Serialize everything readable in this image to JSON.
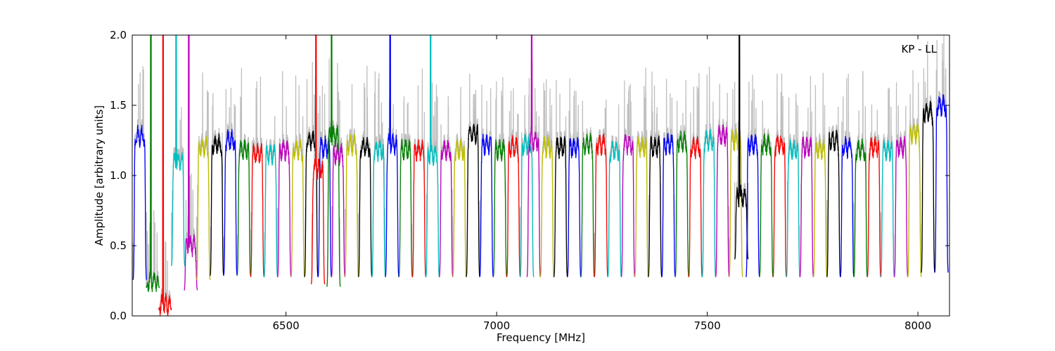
{
  "chart_data": {
    "type": "line",
    "title": "",
    "annotation": "KP - LL",
    "xlabel": "Frequency [MHz]",
    "ylabel": "Amplitude [arbitrary units]",
    "xlim": [
      6135,
      8075
    ],
    "ylim": [
      0.0,
      2.0
    ],
    "x_ticks": [
      6500,
      7000,
      7500,
      8000
    ],
    "x_tick_labels": [
      "6500",
      "7000",
      "7500",
      "8000"
    ],
    "y_ticks": [
      0.0,
      0.5,
      1.0,
      1.5,
      2.0
    ],
    "y_tick_labels": [
      "0.0",
      "0.5",
      "1.0",
      "1.5",
      "2.0"
    ],
    "grid": false,
    "background_trace_color": "#bfbfbf",
    "color_cycle": [
      "#0000ff",
      "#008000",
      "#ff0000",
      "#00bfbf",
      "#bf00bf",
      "#bfbf00",
      "#000000"
    ],
    "band_width_mhz": 32,
    "series": [
      {
        "x0": 6137,
        "level": 1.28,
        "color": "#0000ff",
        "edge": 0.25
      },
      {
        "x0": 6168,
        "level": 0.25,
        "color": "#008000",
        "edge": 0.2,
        "spike": 2.0
      },
      {
        "x0": 6197,
        "level": 0.08,
        "color": "#ff0000",
        "edge": 0.05,
        "spike": 2.0
      },
      {
        "x0": 6228,
        "level": 1.1,
        "color": "#00bfbf",
        "edge": 0.35,
        "spike": 2.0
      },
      {
        "x0": 6258,
        "level": 0.5,
        "color": "#bf00bf",
        "edge": 0.18,
        "spike": 2.0
      },
      {
        "x0": 6288,
        "level": 1.2,
        "color": "#bfbf00",
        "edge": 0.25
      },
      {
        "x0": 6320,
        "level": 1.22,
        "color": "#000000",
        "edge": 0.28
      },
      {
        "x0": 6352,
        "level": 1.25,
        "color": "#0000ff",
        "edge": 0.28
      },
      {
        "x0": 6384,
        "level": 1.18,
        "color": "#008000",
        "edge": 0.28
      },
      {
        "x0": 6416,
        "level": 1.15,
        "color": "#ff0000",
        "edge": 0.27
      },
      {
        "x0": 6448,
        "level": 1.15,
        "color": "#00bfbf",
        "edge": 0.27
      },
      {
        "x0": 6480,
        "level": 1.18,
        "color": "#bf00bf",
        "edge": 0.27
      },
      {
        "x0": 6512,
        "level": 1.18,
        "color": "#bfbf00",
        "edge": 0.27
      },
      {
        "x0": 6544,
        "level": 1.25,
        "color": "#000000",
        "edge": 0.27
      },
      {
        "x0": 6560,
        "level": 1.05,
        "color": "#ff0000",
        "edge": 0.22,
        "spike": 2.0
      },
      {
        "x0": 6576,
        "level": 1.2,
        "color": "#0000ff",
        "edge": 0.27
      },
      {
        "x0": 6597,
        "level": 1.28,
        "color": "#008000",
        "edge": 0.2,
        "spike": 2.0
      },
      {
        "x0": 6608,
        "level": 1.15,
        "color": "#bf00bf",
        "edge": 0.27
      },
      {
        "x0": 6640,
        "level": 1.22,
        "color": "#bfbf00",
        "edge": 0.27
      },
      {
        "x0": 6672,
        "level": 1.2,
        "color": "#000000",
        "edge": 0.27
      },
      {
        "x0": 6704,
        "level": 1.18,
        "color": "#00bfbf",
        "edge": 0.27
      },
      {
        "x0": 6736,
        "level": 1.22,
        "color": "#0000ff",
        "edge": 0.27,
        "spike": 2.0
      },
      {
        "x0": 6768,
        "level": 1.18,
        "color": "#008000",
        "edge": 0.27
      },
      {
        "x0": 6800,
        "level": 1.18,
        "color": "#ff0000",
        "edge": 0.27
      },
      {
        "x0": 6832,
        "level": 1.15,
        "color": "#00bfbf",
        "edge": 0.27,
        "spike": 2.0
      },
      {
        "x0": 6864,
        "level": 1.18,
        "color": "#bf00bf",
        "edge": 0.27
      },
      {
        "x0": 6896,
        "level": 1.18,
        "color": "#bfbf00",
        "edge": 0.27
      },
      {
        "x0": 6928,
        "level": 1.3,
        "color": "#000000",
        "edge": 0.27
      },
      {
        "x0": 6960,
        "level": 1.22,
        "color": "#0000ff",
        "edge": 0.27
      },
      {
        "x0": 6992,
        "level": 1.18,
        "color": "#008000",
        "edge": 0.27
      },
      {
        "x0": 7024,
        "level": 1.2,
        "color": "#ff0000",
        "edge": 0.27
      },
      {
        "x0": 7056,
        "level": 1.22,
        "color": "#00bfbf",
        "edge": 0.27
      },
      {
        "x0": 7072,
        "level": 1.25,
        "color": "#bf00bf",
        "edge": 0.27,
        "spike": 2.0
      },
      {
        "x0": 7104,
        "level": 1.2,
        "color": "#bfbf00",
        "edge": 0.27
      },
      {
        "x0": 7136,
        "level": 1.2,
        "color": "#000000",
        "edge": 0.27
      },
      {
        "x0": 7168,
        "level": 1.2,
        "color": "#0000ff",
        "edge": 0.27
      },
      {
        "x0": 7200,
        "level": 1.22,
        "color": "#008000",
        "edge": 0.27
      },
      {
        "x0": 7232,
        "level": 1.22,
        "color": "#ff0000",
        "edge": 0.27
      },
      {
        "x0": 7264,
        "level": 1.18,
        "color": "#00bfbf",
        "edge": 0.27
      },
      {
        "x0": 7296,
        "level": 1.22,
        "color": "#bf00bf",
        "edge": 0.27
      },
      {
        "x0": 7328,
        "level": 1.2,
        "color": "#bfbf00",
        "edge": 0.27
      },
      {
        "x0": 7360,
        "level": 1.2,
        "color": "#000000",
        "edge": 0.27
      },
      {
        "x0": 7392,
        "level": 1.22,
        "color": "#0000ff",
        "edge": 0.27
      },
      {
        "x0": 7424,
        "level": 1.24,
        "color": "#008000",
        "edge": 0.27
      },
      {
        "x0": 7456,
        "level": 1.2,
        "color": "#ff0000",
        "edge": 0.27
      },
      {
        "x0": 7488,
        "level": 1.25,
        "color": "#00bfbf",
        "edge": 0.27
      },
      {
        "x0": 7520,
        "level": 1.28,
        "color": "#bf00bf",
        "edge": 0.27
      },
      {
        "x0": 7552,
        "level": 1.25,
        "color": "#bfbf00",
        "edge": 0.27
      },
      {
        "x0": 7565,
        "level": 0.85,
        "color": "#000000",
        "edge": 0.4,
        "spike": 2.0
      },
      {
        "x0": 7592,
        "level": 1.22,
        "color": "#0000ff",
        "edge": 0.27
      },
      {
        "x0": 7624,
        "level": 1.22,
        "color": "#008000",
        "edge": 0.27
      },
      {
        "x0": 7656,
        "level": 1.22,
        "color": "#ff0000",
        "edge": 0.27
      },
      {
        "x0": 7688,
        "level": 1.18,
        "color": "#00bfbf",
        "edge": 0.27
      },
      {
        "x0": 7720,
        "level": 1.2,
        "color": "#bf00bf",
        "edge": 0.27
      },
      {
        "x0": 7752,
        "level": 1.18,
        "color": "#bfbf00",
        "edge": 0.27
      },
      {
        "x0": 7784,
        "level": 1.25,
        "color": "#000000",
        "edge": 0.27
      },
      {
        "x0": 7816,
        "level": 1.2,
        "color": "#0000ff",
        "edge": 0.27
      },
      {
        "x0": 7848,
        "level": 1.18,
        "color": "#008000",
        "edge": 0.27
      },
      {
        "x0": 7880,
        "level": 1.2,
        "color": "#ff0000",
        "edge": 0.27
      },
      {
        "x0": 7912,
        "level": 1.18,
        "color": "#00bfbf",
        "edge": 0.27
      },
      {
        "x0": 7944,
        "level": 1.2,
        "color": "#bf00bf",
        "edge": 0.27
      },
      {
        "x0": 7976,
        "level": 1.3,
        "color": "#bfbf00",
        "edge": 0.27
      },
      {
        "x0": 8008,
        "level": 1.45,
        "color": "#000000",
        "edge": 0.3
      },
      {
        "x0": 8040,
        "level": 1.5,
        "color": "#0000ff",
        "edge": 0.3
      }
    ]
  }
}
